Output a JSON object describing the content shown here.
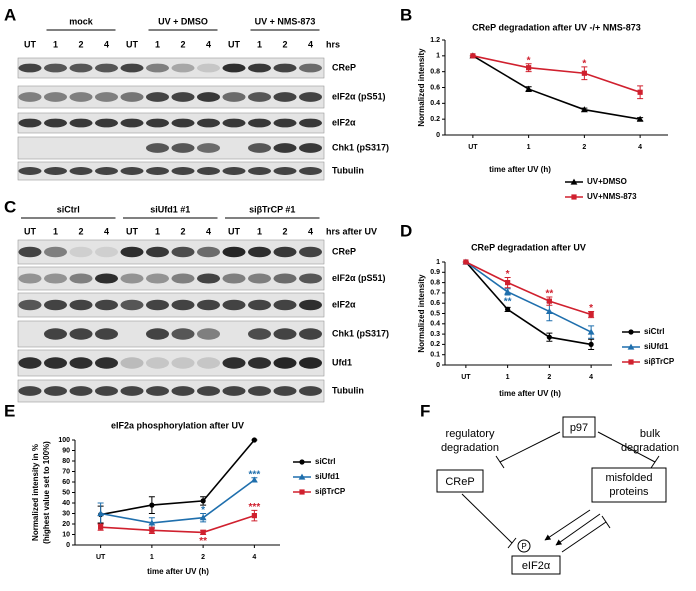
{
  "panels": [
    "A",
    "B",
    "C",
    "D",
    "E",
    "F"
  ],
  "blots": [
    {
      "groups": [
        "mock",
        "UV + DMSO",
        "UV + NMS-873"
      ],
      "lanes": [
        "UT",
        "1",
        "2",
        "4",
        "UT",
        "1",
        "2",
        "4",
        "UT",
        "1",
        "2",
        "4"
      ],
      "time_label": "hrs",
      "rows": [
        "CReP",
        "eIF2α (pS51)",
        "eIF2α",
        "Chk1 (pS317)",
        "Tubulin"
      ]
    },
    {
      "groups": [
        "siCtrl",
        "siUfd1 #1",
        "siβTrCP #1"
      ],
      "lanes": [
        "UT",
        "1",
        "2",
        "4",
        "UT",
        "1",
        "2",
        "4",
        "UT",
        "1",
        "2",
        "4"
      ],
      "time_label": "hrs after UV",
      "rows": [
        "CReP",
        "eIF2α (pS51)",
        "eIF2α",
        "Chk1 (pS317)",
        "Ufd1",
        "Tubulin"
      ]
    }
  ],
  "chart_data": [
    {
      "type": "line",
      "title": "CReP degradation after UV -/+ NMS-873",
      "xlabel": "time after UV (h)",
      "ylabel": [
        "Normalized intensity"
      ],
      "categories": [
        "UT",
        "1",
        "2",
        "4"
      ],
      "ylim": [
        0,
        1.2
      ],
      "yticks": [
        0,
        0.2,
        0.4,
        0.6,
        0.8,
        1,
        1.2
      ],
      "series": [
        {
          "name": "UV+DMSO",
          "color": "#000000",
          "marker": "triangle",
          "values": [
            1,
            0.58,
            0.32,
            0.2
          ],
          "errors": [
            0,
            0.03,
            0.02,
            0.02
          ]
        },
        {
          "name": "UV+NMS-873",
          "color": "#d0202e",
          "marker": "square",
          "values": [
            1,
            0.85,
            0.78,
            0.54
          ],
          "errors": [
            0,
            0.05,
            0.08,
            0.08
          ]
        }
      ],
      "annotations": [
        {
          "text": "*",
          "series": "UV+NMS-873",
          "category": "1",
          "position": "above"
        },
        {
          "text": "*",
          "series": "UV+NMS-873",
          "category": "2",
          "position": "above"
        }
      ]
    },
    {
      "type": "line",
      "title": "CReP degradation after UV",
      "xlabel": "time after UV (h)",
      "ylabel": [
        "Normalized intensity"
      ],
      "categories": [
        "UT",
        "1",
        "2",
        "4"
      ],
      "ylim": [
        0,
        1
      ],
      "yticks": [
        0,
        0.1,
        0.2,
        0.3,
        0.4,
        0.5,
        0.6,
        0.7,
        0.8,
        0.9,
        1
      ],
      "series": [
        {
          "name": "siCtrl",
          "color": "#000000",
          "marker": "circle",
          "values": [
            1,
            0.54,
            0.27,
            0.2
          ],
          "errors": [
            0,
            0.02,
            0.04,
            0.05
          ]
        },
        {
          "name": "siUfd1",
          "color": "#1f6fad",
          "marker": "triangle",
          "values": [
            1,
            0.71,
            0.52,
            0.32
          ],
          "errors": [
            0,
            0.03,
            0.09,
            0.06
          ]
        },
        {
          "name": "siβTrCP",
          "color": "#d0202e",
          "marker": "square",
          "values": [
            1,
            0.8,
            0.62,
            0.49
          ],
          "errors": [
            0,
            0.05,
            0.04,
            0.03
          ]
        }
      ],
      "annotations": [
        {
          "text": "*",
          "series": "siβTrCP",
          "category": "1",
          "position": "above"
        },
        {
          "text": "**",
          "series": "siβTrCP",
          "category": "2",
          "position": "above"
        },
        {
          "text": "*",
          "series": "siβTrCP",
          "category": "4",
          "position": "above"
        },
        {
          "text": "**",
          "series": "siUfd1",
          "category": "1",
          "position": "below"
        }
      ]
    },
    {
      "type": "line",
      "title": "eIF2a phosphorylation after UV",
      "xlabel": "time after UV (h)",
      "ylabel": [
        "Normalized intensity in %",
        "(highest value set to 100%)"
      ],
      "categories": [
        "UT",
        "1",
        "2",
        "4"
      ],
      "ylim": [
        0,
        100
      ],
      "yticks": [
        0,
        10,
        20,
        30,
        40,
        50,
        60,
        70,
        80,
        90,
        100
      ],
      "series": [
        {
          "name": "siCtrl",
          "color": "#000000",
          "marker": "circle",
          "values": [
            29,
            38,
            42,
            100
          ],
          "errors": [
            8,
            8,
            4,
            0
          ]
        },
        {
          "name": "siUfd1",
          "color": "#1f6fad",
          "marker": "triangle",
          "values": [
            30,
            21,
            26,
            62
          ],
          "errors": [
            10,
            5,
            4,
            2
          ]
        },
        {
          "name": "siβTrCP",
          "color": "#d0202e",
          "marker": "square",
          "values": [
            17,
            14,
            12,
            28
          ],
          "errors": [
            3,
            3,
            2,
            5
          ]
        }
      ],
      "annotations": [
        {
          "text": "***",
          "series": "siUfd1",
          "category": "4",
          "position": "above"
        },
        {
          "text": "***",
          "series": "siβTrCP",
          "category": "4",
          "position": "above"
        },
        {
          "text": "*",
          "series": "siUfd1",
          "category": "2",
          "position": "above"
        },
        {
          "text": "**",
          "series": "siβTrCP",
          "category": "2",
          "position": "below"
        }
      ]
    }
  ],
  "diagram": {
    "p97": "p97",
    "regulatory": [
      "regulatory",
      "degradation"
    ],
    "bulk": [
      "bulk",
      "degradation"
    ],
    "crep": "CReP",
    "misfolded": [
      "misfolded",
      "proteins"
    ],
    "phospho": "P",
    "eif2a": "eIF2α"
  }
}
